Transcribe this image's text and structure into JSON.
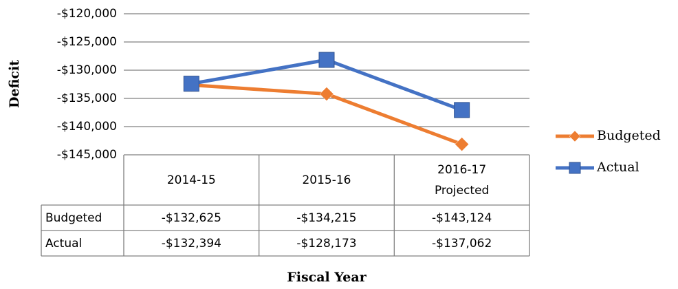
{
  "chart_data": {
    "type": "line",
    "categories": [
      "2014-15",
      "2015-16",
      "2016-17 Projected"
    ],
    "series": [
      {
        "name": "Budgeted",
        "color": "#ed7d31",
        "marker": "diamond",
        "values": [
          -132625,
          -134215,
          -143124
        ],
        "value_labels": [
          "-$132,625",
          "-$134,215",
          "-$143,124"
        ]
      },
      {
        "name": "Actual",
        "color": "#4472c4",
        "marker": "square",
        "values": [
          -132394,
          -128173,
          -137062
        ],
        "value_labels": [
          "-$132,394",
          "-$128,173",
          "-$137,062"
        ]
      }
    ],
    "ylim": [
      -145000,
      -120000
    ],
    "yticks": [
      {
        "value": -120000,
        "label": "-$120,000"
      },
      {
        "value": -125000,
        "label": "-$125,000"
      },
      {
        "value": -130000,
        "label": "-$130,000"
      },
      {
        "value": -135000,
        "label": "-$135,000"
      },
      {
        "value": -140000,
        "label": "-$140,000"
      },
      {
        "value": -145000,
        "label": "-$145,000"
      }
    ],
    "y_label": "Deficit",
    "x_label": "Fiscal Year",
    "grid": true,
    "legend": "right",
    "data_table": true
  }
}
